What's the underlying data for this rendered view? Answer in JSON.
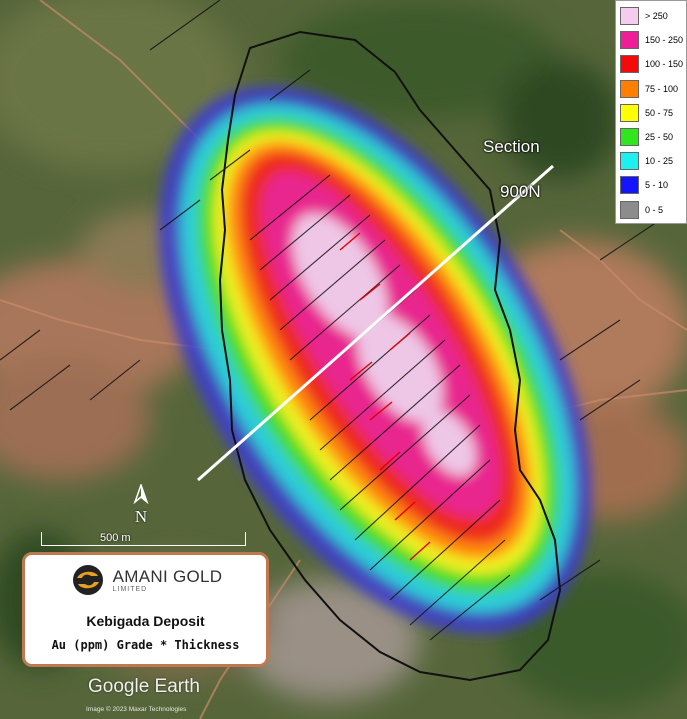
{
  "legend": {
    "items": [
      {
        "label": "> 250",
        "color": "#f4cdee"
      },
      {
        "label": "150 - 250",
        "color": "#f01e96"
      },
      {
        "label": "100 - 150",
        "color": "#f50a0a"
      },
      {
        "label": "75 - 100",
        "color": "#ff8000"
      },
      {
        "label": "50 - 75",
        "color": "#ffff00"
      },
      {
        "label": "25 - 50",
        "color": "#32e61e"
      },
      {
        "label": "10 - 25",
        "color": "#1ef0f0"
      },
      {
        "label": "5 - 10",
        "color": "#1414ff"
      },
      {
        "label": "0 - 5",
        "color": "#8c8c8c"
      }
    ]
  },
  "section": {
    "line1": "Section",
    "line2": "900N"
  },
  "north_arrow": {
    "letter": "N"
  },
  "scale_bar": {
    "label": "500 m"
  },
  "info_box": {
    "company_name": "AMANI GOLD",
    "company_sub": "LIMITED",
    "title": "Kebigada Deposit",
    "subtitle": "Au (ppm) Grade * Thickness"
  },
  "google_earth": {
    "logo": "Google Earth",
    "credit": "Image © 2023 Maxar Technologies"
  }
}
